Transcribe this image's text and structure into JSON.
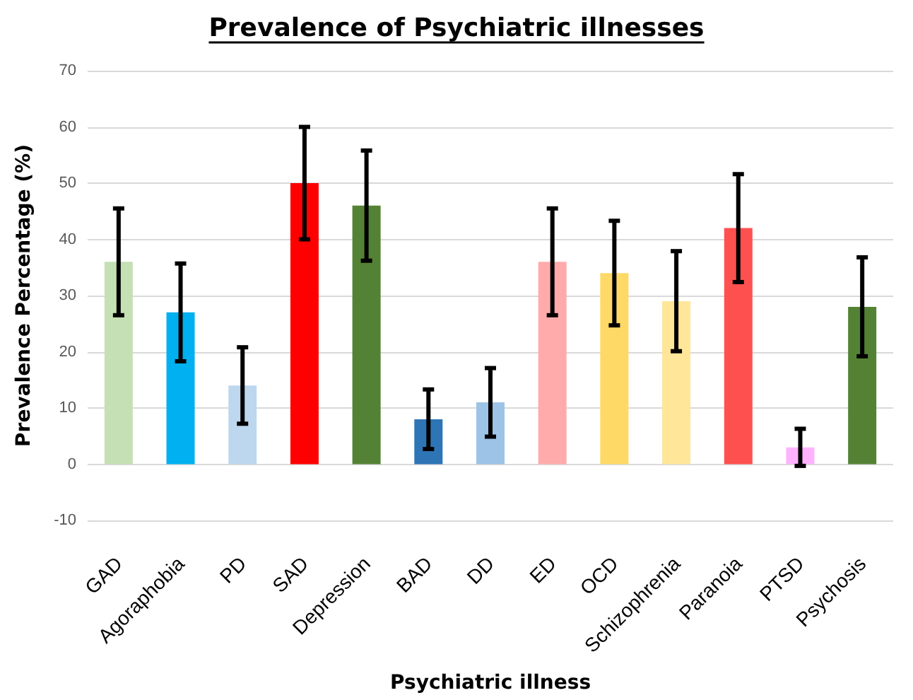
{
  "chart_data": {
    "type": "bar",
    "title": "Prevalence of Psychiatric illnesses",
    "xlabel": "Psychiatric illness",
    "ylabel": "Prevalence Percentage (%)",
    "categories": [
      "GAD",
      "Agoraphobia",
      "PD",
      "SAD",
      "Depression",
      "BAD",
      "DD",
      "ED",
      "OCD",
      "Schizophrenia",
      "Paranoia",
      "PTSD",
      "Psychosis"
    ],
    "values": [
      36,
      27,
      14,
      50,
      46,
      8,
      11,
      36,
      34,
      29,
      42,
      3,
      28
    ],
    "errors": [
      9.5,
      8.7,
      6.8,
      10,
      9.8,
      5.3,
      6.1,
      9.5,
      9.3,
      8.9,
      9.6,
      3.3,
      8.8
    ],
    "colors": [
      "#c5e0b4",
      "#00b0f0",
      "#bdd7ee",
      "#ff0000",
      "#548235",
      "#2e75b6",
      "#9dc3e6",
      "#ffabab",
      "#ffd966",
      "#ffe699",
      "#ff5050",
      "#ffb3ff",
      "#548235"
    ],
    "ylim": [
      -10,
      70
    ],
    "yticks": [
      -10,
      0,
      10,
      20,
      30,
      40,
      50,
      60,
      70
    ],
    "grid": "y"
  }
}
